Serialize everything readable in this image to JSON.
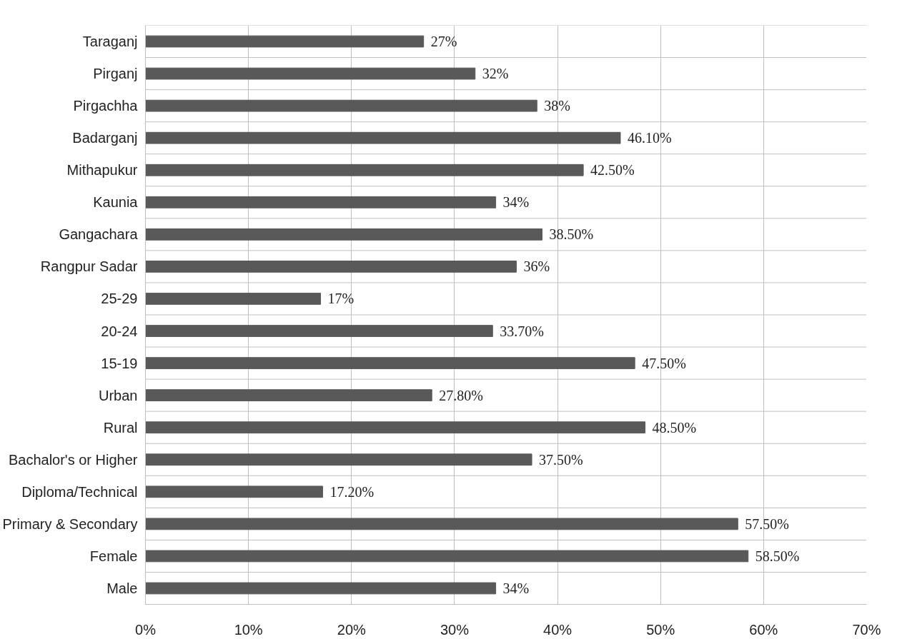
{
  "chart_data": {
    "type": "bar",
    "orientation": "horizontal",
    "categories": [
      "Taraganj",
      "Pirganj",
      "Pirgachha",
      "Badarganj",
      "Mithapukur",
      "Kaunia",
      "Gangachara",
      "Rangpur Sadar",
      "25-29",
      "20-24",
      "15-19",
      "Urban",
      "Rural",
      "Bachalor's or Higher",
      "Diploma/Technical",
      "Primary & Secondary",
      "Female",
      "Male"
    ],
    "values": [
      27,
      32,
      38,
      46.1,
      42.5,
      34,
      38.5,
      36,
      17,
      33.7,
      47.5,
      27.8,
      48.5,
      37.5,
      17.2,
      57.5,
      58.5,
      34
    ],
    "value_labels": [
      "27%",
      "32%",
      "38%",
      "46.10%",
      "42.50%",
      "34%",
      "38.50%",
      "36%",
      "17%",
      "33.70%",
      "47.50%",
      "27.80%",
      "48.50%",
      "37.50%",
      "17.20%",
      "57.50%",
      "58.50%",
      "34%"
    ],
    "color": "#595959",
    "xlim": [
      0,
      70
    ],
    "xticks": [
      {
        "value": 0,
        "label": "0%"
      },
      {
        "value": 10,
        "label": "10%"
      },
      {
        "value": 20,
        "label": "20%"
      },
      {
        "value": 30,
        "label": "30%"
      },
      {
        "value": 40,
        "label": "40%"
      },
      {
        "value": 50,
        "label": "50%"
      },
      {
        "value": 60,
        "label": "60%"
      },
      {
        "value": 70,
        "label": "70%"
      }
    ],
    "grid": true
  }
}
